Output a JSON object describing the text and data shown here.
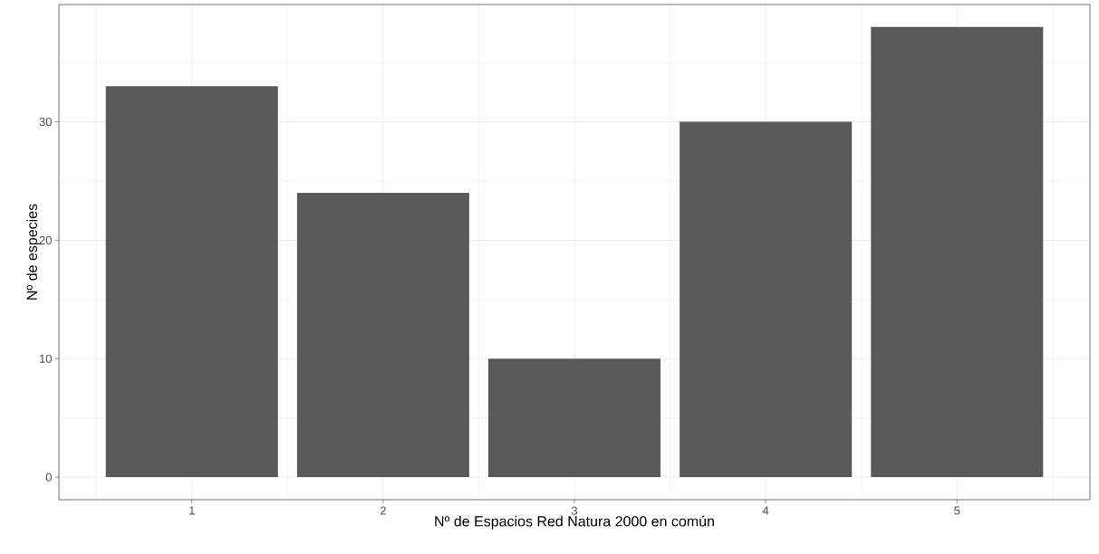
{
  "chart_data": {
    "type": "bar",
    "xlabel": "Nº de Espacios Red Natura 2000 en común",
    "ylabel": "Nº de especies",
    "x": [
      1,
      2,
      3,
      4,
      5
    ],
    "values": [
      33,
      24,
      10,
      30,
      38
    ],
    "color": "#595959",
    "xlim": [
      0.305,
      5.695
    ],
    "ylim": [
      -1.9,
      39.9
    ],
    "xticks": [
      1,
      2,
      3,
      4,
      5
    ],
    "yticks": [
      0,
      10,
      20,
      30
    ],
    "grid": true
  }
}
